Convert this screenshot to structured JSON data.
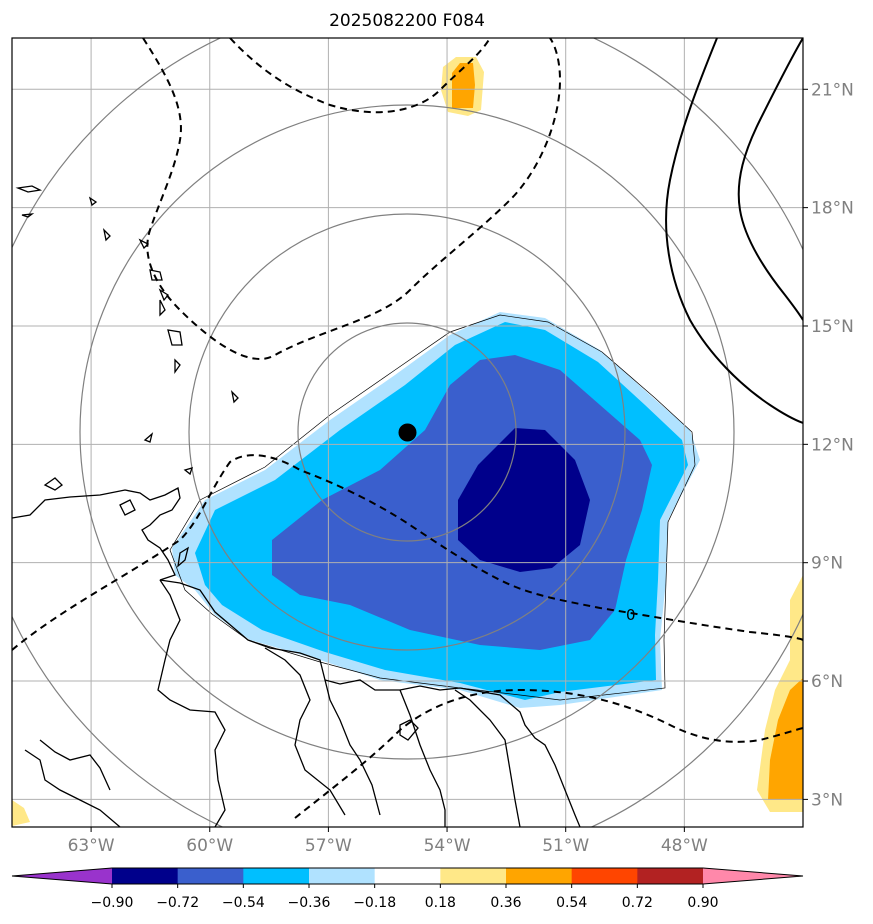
{
  "title": "2025082200 F084",
  "map": {
    "lon_range": [
      -65.0,
      -45.0
    ],
    "lat_range": [
      2.3,
      22.3
    ],
    "lon_ticks": [
      {
        "value": -63,
        "label": "63°W"
      },
      {
        "value": -60,
        "label": "60°W"
      },
      {
        "value": -57,
        "label": "57°W"
      },
      {
        "value": -54,
        "label": "54°W"
      },
      {
        "value": -51,
        "label": "51°W"
      },
      {
        "value": -48,
        "label": "48°W"
      }
    ],
    "lat_ticks": [
      {
        "value": 3,
        "label": "3°N"
      },
      {
        "value": 6,
        "label": "6°N"
      },
      {
        "value": 9,
        "label": "9°N"
      },
      {
        "value": 12,
        "label": "12°N"
      },
      {
        "value": 15,
        "label": "15°N"
      },
      {
        "value": 18,
        "label": "18°N"
      },
      {
        "value": 21,
        "label": "21°N"
      }
    ],
    "grid": true,
    "center_marker": {
      "lon": -55.0,
      "lat": 12.3
    },
    "contour_label": "0"
  },
  "colorbar": {
    "ticks": [
      "−0.90",
      "−0.72",
      "−0.54",
      "−0.36",
      "−0.18",
      "0.18",
      "0.36",
      "0.54",
      "0.72",
      "0.90"
    ],
    "colors": [
      "#9933cc",
      "#00008b",
      "#3a5fcd",
      "#00bfff",
      "#b0e2ff",
      "#ffffff",
      "#ffe888",
      "#ffa500",
      "#ff4500",
      "#b22222",
      "#ff88aa"
    ],
    "extend": "both"
  },
  "colors": {
    "land_line": "#000000",
    "grid_line": "#b0b0b0",
    "range_rings": "#808080"
  }
}
